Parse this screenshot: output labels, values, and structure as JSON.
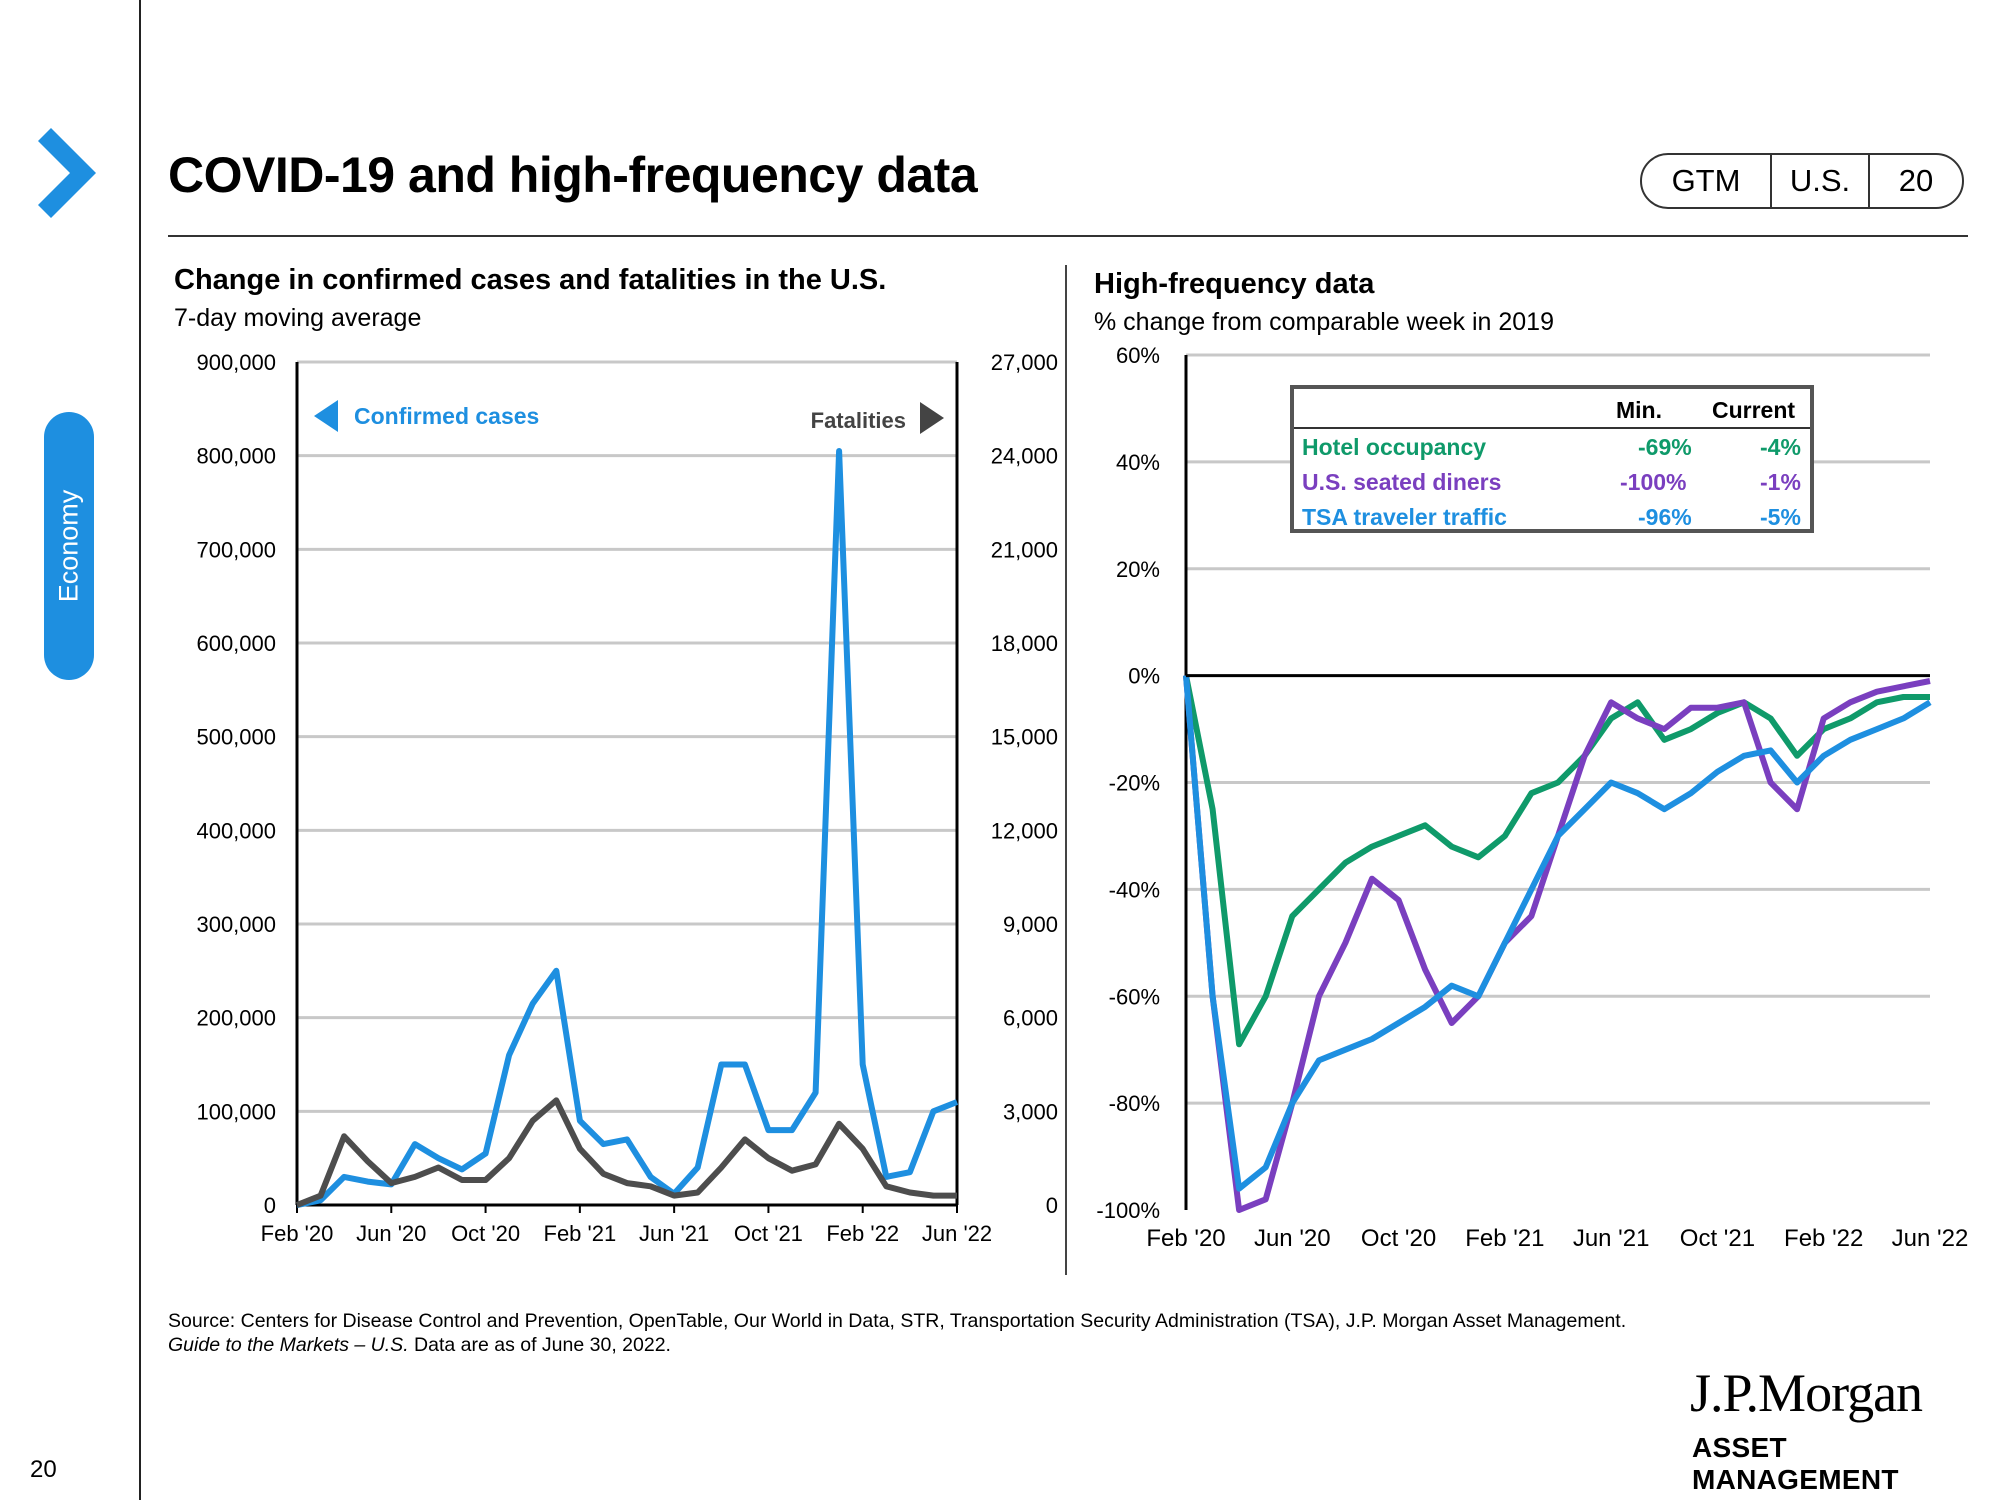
{
  "page": {
    "title": "COVID-19 and high-frequency data",
    "badge": [
      "GTM",
      "U.S.",
      "20"
    ],
    "section": "Economy",
    "page_number": "20",
    "footnote_source": "Source: Centers for Disease Control and Prevention, OpenTable, Our World in Data, STR, Transportation Security Administration (TSA), J.P. Morgan Asset Management.",
    "footnote_guide_italic": "Guide to the Markets – U.S.",
    "footnote_guide_rest": " Data are as of June 30, 2022.",
    "logo_name": "J.P.Morgan",
    "logo_sub": "ASSET MANAGEMENT",
    "colors": {
      "accent": "#1e8fe0",
      "cases": "#1e8fe0",
      "fatalities": "#4d4d4d",
      "hotel": "#0f9a6a",
      "diners": "#7a3fbf",
      "tsa": "#1e8fe0"
    }
  },
  "chart_data": [
    {
      "type": "line",
      "title": "Change in confirmed cases and fatalities in the U.S.",
      "subtitle": "7-day moving average",
      "x_ticks": [
        "Feb '20",
        "Jun '20",
        "Oct '20",
        "Feb '21",
        "Jun '21",
        "Oct '21",
        "Feb '22",
        "Jun '22"
      ],
      "x_range": [
        "2020-02",
        "2022-06"
      ],
      "y_left": {
        "ticks": [
          "0",
          "100,000",
          "200,000",
          "300,000",
          "400,000",
          "500,000",
          "600,000",
          "700,000",
          "800,000",
          "900,000"
        ],
        "lim": [
          0,
          900000
        ]
      },
      "y_right": {
        "ticks": [
          "0",
          "3,000",
          "6,000",
          "9,000",
          "12,000",
          "15,000",
          "18,000",
          "21,000",
          "24,000",
          "27,000"
        ],
        "lim": [
          0,
          27000
        ]
      },
      "legend": {
        "left_label": "Confirmed cases",
        "right_label": "Fatalities"
      },
      "grid": true,
      "series": [
        {
          "name": "Confirmed cases",
          "axis": "left",
          "color": "#1e8fe0",
          "x": [
            "2020-02",
            "2020-03",
            "2020-04",
            "2020-05",
            "2020-06",
            "2020-07",
            "2020-08",
            "2020-09",
            "2020-10",
            "2020-11",
            "2020-12",
            "2021-01",
            "2021-02",
            "2021-03",
            "2021-04",
            "2021-05",
            "2021-06",
            "2021-07",
            "2021-08",
            "2021-09",
            "2021-10",
            "2021-11",
            "2021-12",
            "2022-01",
            "2022-02",
            "2022-03",
            "2022-04",
            "2022-05",
            "2022-06"
          ],
          "values": [
            0,
            5000,
            30000,
            25000,
            22000,
            65000,
            50000,
            38000,
            55000,
            160000,
            215000,
            250000,
            90000,
            65000,
            70000,
            30000,
            12000,
            40000,
            150000,
            150000,
            80000,
            80000,
            120000,
            805000,
            150000,
            30000,
            35000,
            100000,
            110000
          ]
        },
        {
          "name": "Fatalities",
          "axis": "right",
          "color": "#4d4d4d",
          "x": [
            "2020-02",
            "2020-03",
            "2020-04",
            "2020-05",
            "2020-06",
            "2020-07",
            "2020-08",
            "2020-09",
            "2020-10",
            "2020-11",
            "2020-12",
            "2021-01",
            "2021-02",
            "2021-03",
            "2021-04",
            "2021-05",
            "2021-06",
            "2021-07",
            "2021-08",
            "2021-09",
            "2021-10",
            "2021-11",
            "2021-12",
            "2022-01",
            "2022-02",
            "2022-03",
            "2022-04",
            "2022-05",
            "2022-06"
          ],
          "values": [
            0,
            300,
            2200,
            1400,
            700,
            900,
            1200,
            800,
            800,
            1500,
            2700,
            3350,
            1800,
            1000,
            700,
            600,
            300,
            400,
            1200,
            2100,
            1500,
            1100,
            1300,
            2600,
            1800,
            600,
            400,
            300,
            300
          ]
        }
      ]
    },
    {
      "type": "line",
      "title": "High-frequency data",
      "subtitle": "% change from comparable week in 2019",
      "x_ticks": [
        "Feb '20",
        "Jun '20",
        "Oct '20",
        "Feb '21",
        "Jun '21",
        "Oct '21",
        "Feb '22",
        "Jun '22"
      ],
      "x_range": [
        "2020-02",
        "2022-06"
      ],
      "y": {
        "ticks": [
          "-100%",
          "-80%",
          "-60%",
          "-40%",
          "-20%",
          "0%",
          "20%",
          "40%",
          "60%"
        ],
        "lim": [
          -100,
          60
        ]
      },
      "grid": true,
      "table": {
        "headers": [
          "Min.",
          "Current"
        ],
        "rows": [
          {
            "label": "Hotel occupancy",
            "min": "-69%",
            "current": "-4%",
            "color": "#0f9a6a"
          },
          {
            "label": "U.S. seated diners",
            "min": "-100%",
            "current": "-1%",
            "color": "#7a3fbf"
          },
          {
            "label": "TSA traveler traffic",
            "min": "-96%",
            "current": "-5%",
            "color": "#1e8fe0"
          }
        ]
      },
      "series": [
        {
          "name": "Hotel occupancy",
          "color": "#0f9a6a",
          "x": [
            "2020-02",
            "2020-03",
            "2020-04",
            "2020-05",
            "2020-06",
            "2020-07",
            "2020-08",
            "2020-09",
            "2020-10",
            "2020-11",
            "2020-12",
            "2021-01",
            "2021-02",
            "2021-03",
            "2021-04",
            "2021-05",
            "2021-06",
            "2021-07",
            "2021-08",
            "2021-09",
            "2021-10",
            "2021-11",
            "2021-12",
            "2022-01",
            "2022-02",
            "2022-03",
            "2022-04",
            "2022-05",
            "2022-06"
          ],
          "values": [
            0,
            -25,
            -69,
            -60,
            -45,
            -40,
            -35,
            -32,
            -30,
            -28,
            -32,
            -34,
            -30,
            -22,
            -20,
            -15,
            -8,
            -5,
            -12,
            -10,
            -7,
            -5,
            -8,
            -15,
            -10,
            -8,
            -5,
            -4,
            -4
          ]
        },
        {
          "name": "U.S. seated diners",
          "color": "#7a3fbf",
          "x": [
            "2020-02",
            "2020-03",
            "2020-04",
            "2020-05",
            "2020-06",
            "2020-07",
            "2020-08",
            "2020-09",
            "2020-10",
            "2020-11",
            "2020-12",
            "2021-01",
            "2021-02",
            "2021-03",
            "2021-04",
            "2021-05",
            "2021-06",
            "2021-07",
            "2021-08",
            "2021-09",
            "2021-10",
            "2021-11",
            "2021-12",
            "2022-01",
            "2022-02",
            "2022-03",
            "2022-04",
            "2022-05",
            "2022-06"
          ],
          "values": [
            0,
            -60,
            -100,
            -98,
            -80,
            -60,
            -50,
            -38,
            -42,
            -55,
            -65,
            -60,
            -50,
            -45,
            -30,
            -15,
            -5,
            -8,
            -10,
            -6,
            -6,
            -5,
            -20,
            -25,
            -8,
            -5,
            -3,
            -2,
            -1
          ]
        },
        {
          "name": "TSA traveler traffic",
          "color": "#1e8fe0",
          "x": [
            "2020-02",
            "2020-03",
            "2020-04",
            "2020-05",
            "2020-06",
            "2020-07",
            "2020-08",
            "2020-09",
            "2020-10",
            "2020-11",
            "2020-12",
            "2021-01",
            "2021-02",
            "2021-03",
            "2021-04",
            "2021-05",
            "2021-06",
            "2021-07",
            "2021-08",
            "2021-09",
            "2021-10",
            "2021-11",
            "2021-12",
            "2022-01",
            "2022-02",
            "2022-03",
            "2022-04",
            "2022-05",
            "2022-06"
          ],
          "values": [
            0,
            -60,
            -96,
            -92,
            -80,
            -72,
            -70,
            -68,
            -65,
            -62,
            -58,
            -60,
            -50,
            -40,
            -30,
            -25,
            -20,
            -22,
            -25,
            -22,
            -18,
            -15,
            -14,
            -20,
            -15,
            -12,
            -10,
            -8,
            -5
          ]
        }
      ]
    }
  ]
}
